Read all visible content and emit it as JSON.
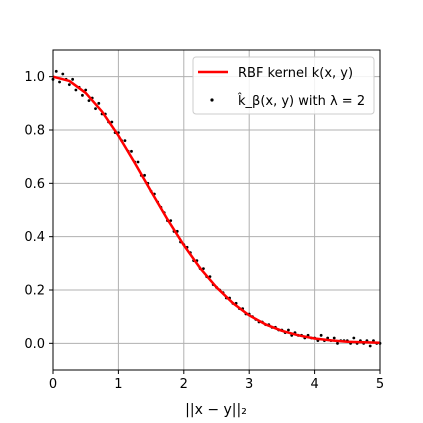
{
  "chart_data": {
    "type": "line",
    "title": "",
    "xlabel": "||x − y||₂",
    "ylabel": "",
    "xlim": [
      0,
      5
    ],
    "ylim": [
      -0.1,
      1.1
    ],
    "xticks": [
      0,
      1,
      2,
      3,
      4,
      5
    ],
    "xtick_labels": [
      "0",
      "1",
      "2",
      "3",
      "4",
      "5"
    ],
    "yticks": [
      0.0,
      0.2,
      0.4,
      0.6,
      0.8,
      1.0
    ],
    "ytick_labels": [
      "0.0",
      "0.2",
      "0.4",
      "0.6",
      "0.8",
      "1.0"
    ],
    "grid": true,
    "legend_position": "top-right",
    "series": [
      {
        "name": "RBF kernel k(x, y)",
        "kind": "line",
        "color": "#ff0000",
        "x": [
          0,
          0.25,
          0.5,
          0.75,
          1,
          1.25,
          1.5,
          1.75,
          2,
          2.25,
          2.5,
          2.75,
          3,
          3.25,
          3.5,
          3.75,
          4,
          4.25,
          4.5,
          4.75,
          5
        ],
        "y": [
          1.0,
          0.984,
          0.939,
          0.869,
          0.779,
          0.677,
          0.57,
          0.465,
          0.368,
          0.282,
          0.21,
          0.151,
          0.105,
          0.071,
          0.047,
          0.03,
          0.018,
          0.011,
          0.006,
          0.004,
          0.002
        ]
      },
      {
        "name": "k̂_β(x, y) with λ = 2",
        "kind": "scatter",
        "color": "#000000",
        "x": [
          0.0,
          0.05,
          0.1,
          0.15,
          0.2,
          0.25,
          0.3,
          0.35,
          0.4,
          0.45,
          0.5,
          0.55,
          0.6,
          0.65,
          0.7,
          0.75,
          0.8,
          0.85,
          0.9,
          0.95,
          1.0,
          1.05,
          1.1,
          1.15,
          1.2,
          1.25,
          1.3,
          1.35,
          1.4,
          1.45,
          1.5,
          1.55,
          1.6,
          1.65,
          1.7,
          1.75,
          1.8,
          1.85,
          1.9,
          1.95,
          2.0,
          2.05,
          2.1,
          2.15,
          2.2,
          2.25,
          2.3,
          2.35,
          2.4,
          2.45,
          2.5,
          2.55,
          2.6,
          2.65,
          2.7,
          2.75,
          2.8,
          2.85,
          2.9,
          2.95,
          3.0,
          3.05,
          3.1,
          3.15,
          3.2,
          3.25,
          3.3,
          3.35,
          3.4,
          3.45,
          3.5,
          3.55,
          3.6,
          3.65,
          3.7,
          3.75,
          3.8,
          3.85,
          3.9,
          3.95,
          4.0,
          4.05,
          4.1,
          4.15,
          4.2,
          4.25,
          4.3,
          4.35,
          4.4,
          4.45,
          4.5,
          4.55,
          4.6,
          4.65,
          4.7,
          4.75,
          4.8,
          4.85,
          4.9,
          4.95,
          5.0
        ],
        "y": [
          0.99,
          1.02,
          0.98,
          1.01,
          0.99,
          0.97,
          0.99,
          0.95,
          0.96,
          0.93,
          0.95,
          0.91,
          0.92,
          0.88,
          0.9,
          0.86,
          0.86,
          0.83,
          0.83,
          0.79,
          0.79,
          0.76,
          0.76,
          0.72,
          0.72,
          0.68,
          0.68,
          0.63,
          0.63,
          0.6,
          0.57,
          0.56,
          0.53,
          0.51,
          0.49,
          0.46,
          0.46,
          0.42,
          0.42,
          0.38,
          0.37,
          0.36,
          0.34,
          0.31,
          0.31,
          0.28,
          0.28,
          0.25,
          0.25,
          0.22,
          0.21,
          0.2,
          0.19,
          0.17,
          0.17,
          0.15,
          0.15,
          0.13,
          0.13,
          0.11,
          0.11,
          0.1,
          0.09,
          0.08,
          0.08,
          0.07,
          0.07,
          0.06,
          0.06,
          0.05,
          0.05,
          0.04,
          0.05,
          0.03,
          0.04,
          0.03,
          0.03,
          0.02,
          0.03,
          0.02,
          0.02,
          0.01,
          0.03,
          0.01,
          0.02,
          0.01,
          0.02,
          0.0,
          0.01,
          0.01,
          0.01,
          0.0,
          0.02,
          0.0,
          0.01,
          0.0,
          0.01,
          -0.01,
          0.01,
          0.0,
          0.0
        ]
      }
    ]
  }
}
